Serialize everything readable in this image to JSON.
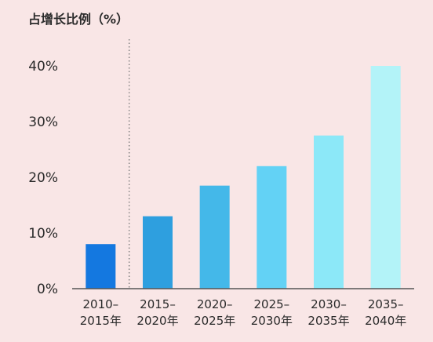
{
  "chart_data": {
    "type": "bar",
    "title": "",
    "ylabel": "占增长比例（%）",
    "xlabel": "",
    "categories": [
      [
        "2010–",
        "2015年"
      ],
      [
        "2015–",
        "2020年"
      ],
      [
        "2020–",
        "2025年"
      ],
      [
        "2025–",
        "2030年"
      ],
      [
        "2030–",
        "2035年"
      ],
      [
        "2035–",
        "2040年"
      ]
    ],
    "values": [
      8,
      13,
      18.5,
      22,
      27.5,
      40
    ],
    "ylim": [
      0,
      40
    ],
    "yticks": [
      0,
      10,
      20,
      30,
      40
    ],
    "ytick_labels": [
      "0%",
      "10%",
      "20%",
      "30%",
      "40%"
    ],
    "colors": [
      "#1478e0",
      "#2e9fdf",
      "#44b8e9",
      "#63d2f5",
      "#8ce8f8",
      "#b3f3f8"
    ],
    "divider_after_category": 0,
    "divider_style": "dotted",
    "grid": false,
    "legend": "none"
  }
}
